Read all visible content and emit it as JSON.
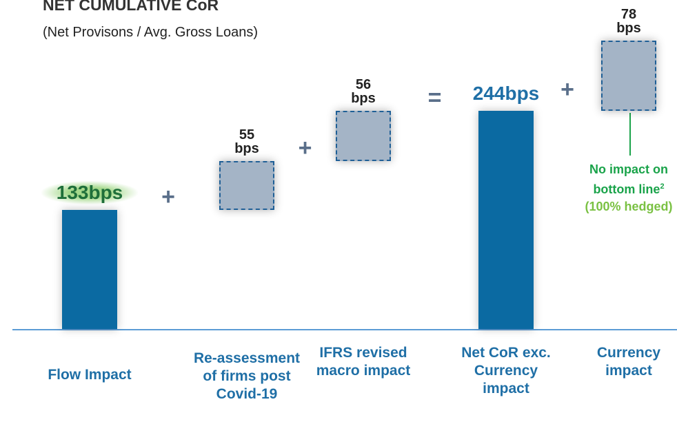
{
  "chart_data": {
    "type": "waterfall",
    "title": "NET CUMULATIVE CoR",
    "subtitle": "(Net Provisons / Avg. Gross Loans)",
    "categories": [
      "Flow Impact",
      "Re-assessment of firms post Covid-19",
      "IFRS revised macro impact",
      "Net CoR exc. Currency impact",
      "Currency impact"
    ],
    "values": [
      133,
      55,
      56,
      244,
      78
    ],
    "value_labels": [
      "133bps",
      "55 bps",
      "56 bps",
      "244bps",
      "78 bps"
    ],
    "measures": [
      "absolute",
      "relative",
      "relative",
      "total",
      "relative"
    ],
    "operators": [
      "+",
      "+",
      "=",
      "+"
    ],
    "ylim": [
      0,
      340
    ],
    "annotation": {
      "text": "No impact on bottom line",
      "footnote": "2",
      "detail": "(100% hedged)"
    }
  }
}
